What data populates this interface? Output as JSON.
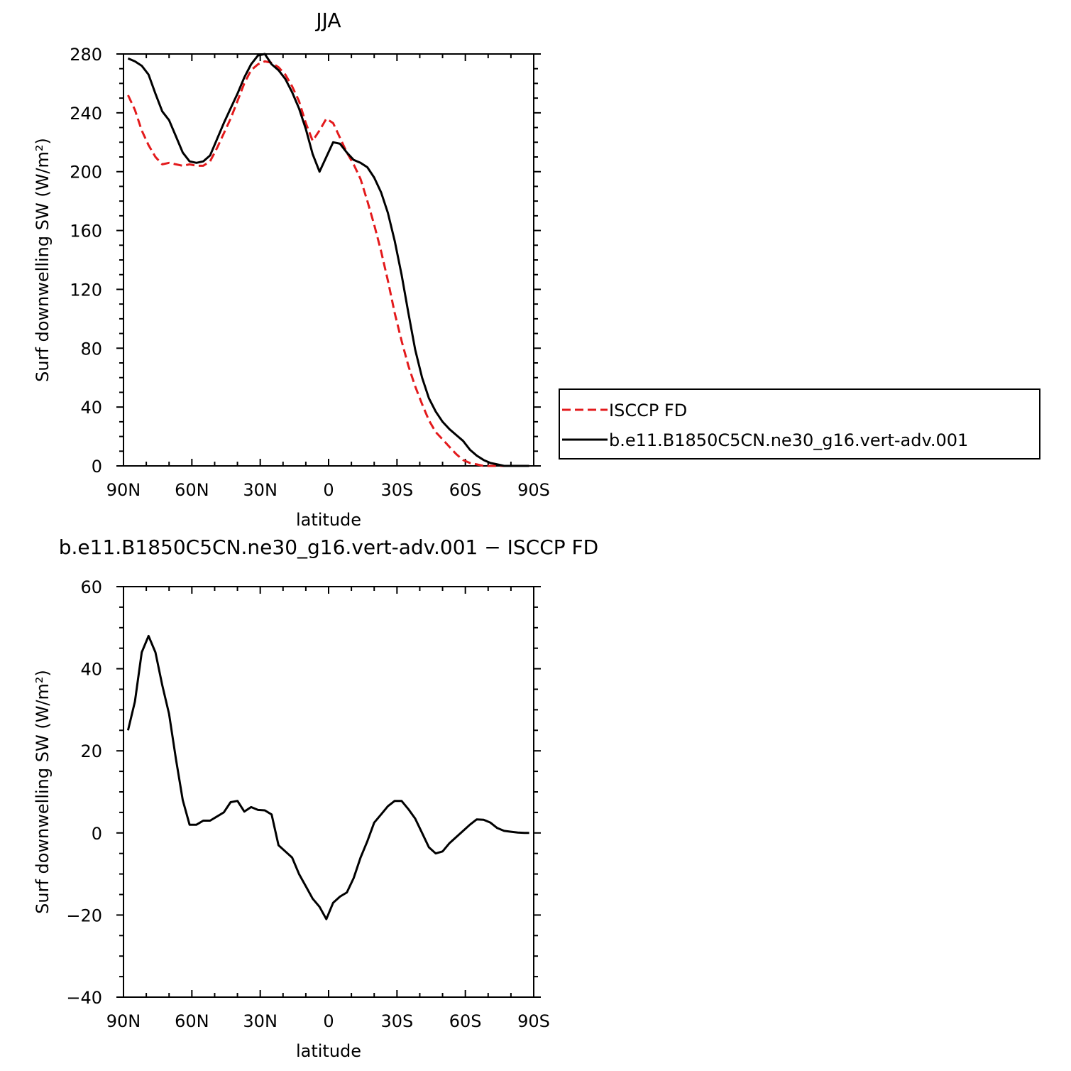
{
  "chart_data": [
    {
      "type": "line",
      "title": "JJA",
      "xlabel": "latitude",
      "ylabel": "Surf downwelling SW (W/m²)",
      "x_ticks": [
        "90N",
        "60N",
        "30N",
        "0",
        "30S",
        "60S",
        "90S"
      ],
      "y_ticks": [
        "0",
        "40",
        "80",
        "120",
        "160",
        "200",
        "240",
        "280"
      ],
      "xlim": [
        90,
        -90
      ],
      "ylim": [
        0,
        280
      ],
      "legend": "right",
      "series": [
        {
          "name": "ISCCP FD",
          "color": "#e31a1c",
          "dash": "dashed",
          "x": [
            88,
            85,
            82,
            79,
            76,
            73,
            70,
            67,
            64,
            61,
            58,
            55,
            52,
            49,
            46,
            43,
            40,
            37,
            34,
            31,
            28,
            25,
            22,
            19,
            16,
            13,
            10,
            7,
            4,
            1,
            -2,
            -5,
            -8,
            -11,
            -14,
            -17,
            -20,
            -23,
            -26,
            -29,
            -32,
            -35,
            -38,
            -41,
            -44,
            -47,
            -50,
            -53,
            -56,
            -59,
            -62,
            -65,
            -68,
            -71,
            -74,
            -77,
            -80,
            -83,
            -86,
            -88
          ],
          "y": [
            252,
            242,
            228,
            218,
            210,
            205,
            206,
            205,
            204,
            205,
            204,
            204,
            207,
            216,
            226,
            236,
            248,
            260,
            269,
            273,
            275,
            274,
            271,
            266,
            258,
            248,
            233,
            221,
            228,
            236,
            233,
            223,
            213,
            205,
            195,
            180,
            164,
            146,
            126,
            104,
            85,
            68,
            54,
            42,
            31,
            23,
            18,
            13,
            8,
            4,
            2,
            1,
            0,
            0,
            0,
            0,
            0,
            0,
            0,
            0
          ]
        },
        {
          "name": "b.e11.B1850C5CN.ne30_g16.vert-adv.001",
          "color": "#000000",
          "dash": "solid",
          "x": [
            88,
            85,
            82,
            79,
            76,
            73,
            70,
            67,
            64,
            61,
            58,
            55,
            52,
            49,
            46,
            43,
            40,
            37,
            34,
            31,
            28,
            25,
            22,
            19,
            16,
            13,
            10,
            7,
            4,
            1,
            -2,
            -5,
            -8,
            -11,
            -14,
            -17,
            -20,
            -23,
            -26,
            -29,
            -32,
            -35,
            -38,
            -41,
            -44,
            -47,
            -50,
            -53,
            -56,
            -59,
            -62,
            -65,
            -68,
            -71,
            -74,
            -77,
            -80,
            -83,
            -86,
            -88
          ],
          "y": [
            277,
            275,
            272,
            266,
            253,
            241,
            235,
            224,
            213,
            207,
            206,
            207,
            211,
            222,
            233,
            243,
            253,
            264,
            273,
            279,
            280,
            273,
            269,
            263,
            254,
            243,
            229,
            212,
            200,
            210,
            220,
            219,
            213,
            208,
            206,
            203,
            196,
            186,
            172,
            153,
            130,
            104,
            79,
            60,
            46,
            37,
            30,
            25,
            21,
            17,
            11,
            7,
            4,
            2,
            1,
            0,
            0,
            0,
            0,
            0
          ]
        }
      ]
    },
    {
      "type": "line",
      "title": "b.e11.B1850C5CN.ne30_g16.vert-adv.001 − ISCCP FD",
      "xlabel": "latitude",
      "ylabel": "Surf downwelling SW (W/m²)",
      "x_ticks": [
        "90N",
        "60N",
        "30N",
        "0",
        "30S",
        "60S",
        "90S"
      ],
      "y_ticks": [
        "−40",
        "−20",
        "0",
        "20",
        "40",
        "60"
      ],
      "xlim": [
        90,
        -90
      ],
      "ylim": [
        -40,
        60
      ],
      "series": [
        {
          "color": "#000000",
          "dash": "solid",
          "x": [
            88,
            85,
            82,
            79,
            76,
            73,
            70,
            67,
            64,
            61,
            58,
            55,
            52,
            49,
            46,
            43,
            40,
            37,
            34,
            31,
            28,
            25,
            22,
            19,
            16,
            13,
            10,
            7,
            4,
            1,
            -2,
            -5,
            -8,
            -11,
            -14,
            -17,
            -20,
            -23,
            -26,
            -29,
            -32,
            -35,
            -38,
            -41,
            -44,
            -47,
            -50,
            -53,
            -56,
            -59,
            -62,
            -65,
            -68,
            -71,
            -74,
            -77,
            -80,
            -83,
            -86,
            -88
          ],
          "y": [
            25,
            32,
            44,
            48,
            44,
            36,
            29,
            18,
            8,
            2,
            2,
            3,
            3,
            4,
            5,
            7.5,
            7.8,
            5.2,
            6.3,
            5.6,
            5.5,
            4.5,
            -3,
            -4.5,
            -6,
            -10,
            -13,
            -16,
            -18,
            -21,
            -17,
            -15.5,
            -14.5,
            -11,
            -6,
            -2,
            2.5,
            4.5,
            6.5,
            7.8,
            7.8,
            5.8,
            3.5,
            0,
            -3.5,
            -5,
            -4.5,
            -2.5,
            -1,
            0.5,
            2,
            3.3,
            3.2,
            2.5,
            1.2,
            0.5,
            0.3,
            0.1,
            0,
            0
          ]
        }
      ]
    }
  ]
}
